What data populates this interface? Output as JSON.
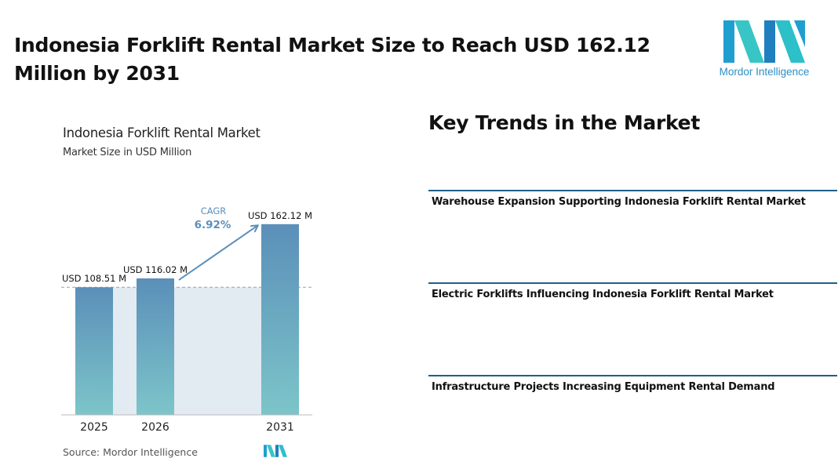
{
  "headline": "Indonesia Forklift Rental Market Size to Reach USD 162.12 Million by 2031",
  "logo": {
    "icon": "mordor-intelligence-logo",
    "text": "Mordor Intelligence"
  },
  "chart_data": {
    "type": "bar",
    "title": "Indonesia Forklift Rental Market",
    "subtitle": "Market Size in USD Million",
    "categories": [
      "2025",
      "2026",
      "2031"
    ],
    "values": [
      108.51,
      116.02,
      162.12
    ],
    "value_labels": [
      "USD 108.51 M",
      "USD 116.02 M",
      "USD 162.12 M"
    ],
    "cagr_label": "CAGR",
    "cagr_value": "6.92%",
    "ylim": [
      0,
      170
    ],
    "grid": false,
    "colors": {
      "bar_top": "#5b8fb9",
      "bar_bottom": "#7cc5c9",
      "band": "#e2eaf2",
      "arrow": "#5b8fb9",
      "cagr_text": "#5b8fb9"
    }
  },
  "source": "Source: Mordor Intelligence",
  "key_trends": {
    "title": "Key Trends in the Market",
    "items": [
      "Warehouse Expansion Supporting Indonesia Forklift Rental Market",
      "Electric Forklifts Influencing Indonesia Forklift Rental Market",
      "Infrastructure Projects Increasing Equipment Rental Demand"
    ]
  }
}
